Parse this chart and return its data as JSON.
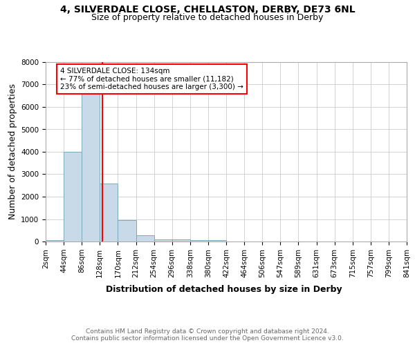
{
  "title_line1": "4, SILVERDALE CLOSE, CHELLASTON, DERBY, DE73 6NL",
  "title_line2": "Size of property relative to detached houses in Derby",
  "xlabel": "Distribution of detached houses by size in Derby",
  "ylabel": "Number of detached properties",
  "footer": "Contains HM Land Registry data © Crown copyright and database right 2024.\nContains public sector information licensed under the Open Government Licence v3.0.",
  "bin_labels": [
    "2sqm",
    "44sqm",
    "86sqm",
    "128sqm",
    "170sqm",
    "212sqm",
    "254sqm",
    "296sqm",
    "338sqm",
    "380sqm",
    "422sqm",
    "464sqm",
    "506sqm",
    "547sqm",
    "589sqm",
    "631sqm",
    "673sqm",
    "715sqm",
    "757sqm",
    "799sqm",
    "841sqm"
  ],
  "bar_values": [
    50,
    4000,
    6600,
    2600,
    950,
    280,
    100,
    80,
    60,
    60,
    0,
    0,
    0,
    0,
    0,
    0,
    0,
    0,
    0,
    0
  ],
  "bar_color": "#c8d9e8",
  "bar_edgecolor": "#7aaabe",
  "annotation_text": "4 SILVERDALE CLOSE: 134sqm\n← 77% of detached houses are smaller (11,182)\n23% of semi-detached houses are larger (3,300) →",
  "annotation_box_color": "white",
  "annotation_box_edgecolor": "red",
  "ylim": [
    0,
    8000
  ],
  "yticks": [
    0,
    1000,
    2000,
    3000,
    4000,
    5000,
    6000,
    7000,
    8000
  ],
  "grid_color": "#cccccc",
  "background_color": "white",
  "title_fontsize": 10,
  "subtitle_fontsize": 9,
  "axis_label_fontsize": 9,
  "tick_fontsize": 7.5,
  "footer_fontsize": 6.5,
  "footer_color": "#666666"
}
